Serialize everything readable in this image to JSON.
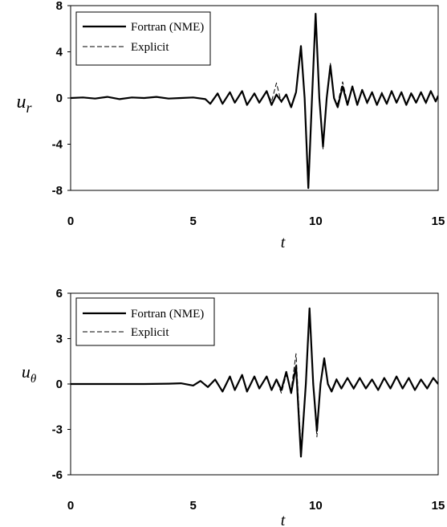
{
  "chart_data": [
    {
      "type": "line",
      "xlabel": "t",
      "ylabel": "u",
      "ylabel_sub": "r",
      "xlim": [
        0,
        15
      ],
      "ylim": [
        -8,
        8
      ],
      "xticks": [
        0,
        5,
        10,
        15
      ],
      "yticks": [
        -8,
        -4,
        0,
        4,
        8
      ],
      "xtick_labels": [
        "0",
        "5",
        "10",
        "15"
      ],
      "ytick_labels": [
        "-8",
        "-4",
        "0",
        "4",
        "8"
      ],
      "legend_position": "top-left",
      "grid": false,
      "series": [
        {
          "name": "Fortran (NME)",
          "style": "solid",
          "color": "#000000",
          "points": [
            [
              0,
              0
            ],
            [
              0.5,
              0.05
            ],
            [
              1,
              -0.05
            ],
            [
              1.5,
              0.1
            ],
            [
              2,
              -0.1
            ],
            [
              2.5,
              0.05
            ],
            [
              3,
              0
            ],
            [
              3.5,
              0.1
            ],
            [
              4,
              -0.05
            ],
            [
              4.5,
              0
            ],
            [
              5,
              0.05
            ],
            [
              5.5,
              -0.1
            ],
            [
              5.7,
              -0.5
            ],
            [
              6,
              0.4
            ],
            [
              6.2,
              -0.5
            ],
            [
              6.5,
              0.5
            ],
            [
              6.7,
              -0.4
            ],
            [
              7,
              0.6
            ],
            [
              7.2,
              -0.6
            ],
            [
              7.5,
              0.4
            ],
            [
              7.7,
              -0.4
            ],
            [
              8,
              0.6
            ],
            [
              8.2,
              -0.6
            ],
            [
              8.4,
              0.3
            ],
            [
              8.6,
              -0.3
            ],
            [
              8.8,
              0.3
            ],
            [
              9,
              -0.8
            ],
            [
              9.2,
              0.5
            ],
            [
              9.4,
              4.5
            ],
            [
              9.55,
              0
            ],
            [
              9.7,
              -7.8
            ],
            [
              9.85,
              0
            ],
            [
              10,
              7.3
            ],
            [
              10.15,
              0
            ],
            [
              10.3,
              -4.2
            ],
            [
              10.45,
              0
            ],
            [
              10.6,
              2.8
            ],
            [
              10.75,
              0
            ],
            [
              10.9,
              -0.8
            ],
            [
              11.1,
              1.0
            ],
            [
              11.3,
              -0.6
            ],
            [
              11.5,
              1.0
            ],
            [
              11.7,
              -0.6
            ],
            [
              11.9,
              0.7
            ],
            [
              12.1,
              -0.4
            ],
            [
              12.3,
              0.5
            ],
            [
              12.5,
              -0.6
            ],
            [
              12.7,
              0.4
            ],
            [
              12.9,
              -0.5
            ],
            [
              13.1,
              0.6
            ],
            [
              13.3,
              -0.4
            ],
            [
              13.5,
              0.5
            ],
            [
              13.7,
              -0.6
            ],
            [
              13.9,
              0.4
            ],
            [
              14.1,
              -0.4
            ],
            [
              14.3,
              0.5
            ],
            [
              14.5,
              -0.4
            ],
            [
              14.7,
              0.6
            ],
            [
              14.9,
              -0.3
            ],
            [
              15,
              0.2
            ]
          ]
        },
        {
          "name": "Explicit",
          "style": "dashed",
          "color": "#000000",
          "points": [
            [
              0,
              0
            ],
            [
              0.5,
              0.03
            ],
            [
              1,
              -0.03
            ],
            [
              1.5,
              0.08
            ],
            [
              2,
              -0.08
            ],
            [
              2.5,
              0.03
            ],
            [
              3,
              0
            ],
            [
              3.5,
              0.08
            ],
            [
              4,
              -0.03
            ],
            [
              4.5,
              0
            ],
            [
              5,
              0.03
            ],
            [
              5.5,
              -0.08
            ],
            [
              5.7,
              -0.45
            ],
            [
              6,
              0.35
            ],
            [
              6.2,
              -0.45
            ],
            [
              6.5,
              0.45
            ],
            [
              6.7,
              -0.35
            ],
            [
              7,
              0.55
            ],
            [
              7.2,
              -0.55
            ],
            [
              7.5,
              0.35
            ],
            [
              7.7,
              -0.35
            ],
            [
              8,
              0.55
            ],
            [
              8.2,
              -0.3
            ],
            [
              8.4,
              1.3
            ],
            [
              8.6,
              -0.4
            ],
            [
              8.8,
              0.4
            ],
            [
              9,
              -0.7
            ],
            [
              9.2,
              0.6
            ],
            [
              9.4,
              4.2
            ],
            [
              9.55,
              0
            ],
            [
              9.7,
              -7.2
            ],
            [
              9.85,
              0
            ],
            [
              10,
              6.9
            ],
            [
              10.15,
              0
            ],
            [
              10.3,
              -4.4
            ],
            [
              10.45,
              0
            ],
            [
              10.6,
              3.0
            ],
            [
              10.75,
              0
            ],
            [
              10.9,
              -0.5
            ],
            [
              11.1,
              1.4
            ],
            [
              11.3,
              -0.4
            ],
            [
              11.5,
              0.9
            ],
            [
              11.7,
              -0.5
            ],
            [
              11.9,
              0.6
            ],
            [
              12.1,
              -0.5
            ],
            [
              12.3,
              0.4
            ],
            [
              12.5,
              -0.5
            ],
            [
              12.7,
              0.5
            ],
            [
              12.9,
              -0.4
            ],
            [
              13.1,
              0.5
            ],
            [
              13.3,
              -0.3
            ],
            [
              13.5,
              0.4
            ],
            [
              13.7,
              -0.5
            ],
            [
              13.9,
              0.5
            ],
            [
              14.1,
              -0.3
            ],
            [
              14.3,
              0.4
            ],
            [
              14.5,
              -0.5
            ],
            [
              14.7,
              0.5
            ],
            [
              14.9,
              -0.2
            ],
            [
              15,
              0.1
            ]
          ]
        }
      ]
    },
    {
      "type": "line",
      "xlabel": "t",
      "ylabel": "u",
      "ylabel_sub": "θ",
      "xlim": [
        0,
        15
      ],
      "ylim": [
        -6,
        6
      ],
      "xticks": [
        0,
        5,
        10,
        15
      ],
      "yticks": [
        -6,
        -3,
        0,
        3,
        6
      ],
      "xtick_labels": [
        "0",
        "5",
        "10",
        "15"
      ],
      "ytick_labels": [
        "-6",
        "-3",
        "0",
        "3",
        "6"
      ],
      "legend_position": "top-left",
      "grid": false,
      "series": [
        {
          "name": "Fortran (NME)",
          "style": "solid",
          "color": "#000000",
          "points": [
            [
              0,
              0
            ],
            [
              1,
              0
            ],
            [
              2,
              0
            ],
            [
              3,
              0
            ],
            [
              4,
              0.02
            ],
            [
              4.5,
              0.05
            ],
            [
              5,
              -0.1
            ],
            [
              5.3,
              0.2
            ],
            [
              5.6,
              -0.2
            ],
            [
              5.9,
              0.3
            ],
            [
              6.2,
              -0.5
            ],
            [
              6.5,
              0.5
            ],
            [
              6.7,
              -0.4
            ],
            [
              7,
              0.6
            ],
            [
              7.2,
              -0.5
            ],
            [
              7.5,
              0.5
            ],
            [
              7.7,
              -0.3
            ],
            [
              8,
              0.5
            ],
            [
              8.2,
              -0.4
            ],
            [
              8.4,
              0.3
            ],
            [
              8.6,
              -0.4
            ],
            [
              8.8,
              0.8
            ],
            [
              9,
              -0.6
            ],
            [
              9.2,
              1.2
            ],
            [
              9.4,
              -4.8
            ],
            [
              9.6,
              0
            ],
            [
              9.75,
              5.0
            ],
            [
              9.9,
              0
            ],
            [
              10.05,
              -3.1
            ],
            [
              10.2,
              0
            ],
            [
              10.35,
              1.7
            ],
            [
              10.5,
              0
            ],
            [
              10.65,
              -0.5
            ],
            [
              10.85,
              0.3
            ],
            [
              11.05,
              -0.3
            ],
            [
              11.3,
              0.4
            ],
            [
              11.55,
              -0.3
            ],
            [
              11.8,
              0.4
            ],
            [
              12.05,
              -0.3
            ],
            [
              12.3,
              0.3
            ],
            [
              12.55,
              -0.4
            ],
            [
              12.8,
              0.4
            ],
            [
              13.05,
              -0.3
            ],
            [
              13.3,
              0.5
            ],
            [
              13.55,
              -0.3
            ],
            [
              13.8,
              0.4
            ],
            [
              14.05,
              -0.4
            ],
            [
              14.3,
              0.3
            ],
            [
              14.55,
              -0.3
            ],
            [
              14.8,
              0.4
            ],
            [
              15,
              0
            ]
          ]
        },
        {
          "name": "Explicit",
          "style": "dashed",
          "color": "#000000",
          "points": [
            [
              0,
              0
            ],
            [
              1,
              0
            ],
            [
              2,
              0
            ],
            [
              3,
              0
            ],
            [
              4,
              0.02
            ],
            [
              4.5,
              0.04
            ],
            [
              5,
              -0.08
            ],
            [
              5.3,
              0.18
            ],
            [
              5.6,
              -0.18
            ],
            [
              5.9,
              0.28
            ],
            [
              6.2,
              -0.45
            ],
            [
              6.5,
              0.45
            ],
            [
              6.7,
              -0.35
            ],
            [
              7,
              0.55
            ],
            [
              7.2,
              -0.45
            ],
            [
              7.5,
              0.45
            ],
            [
              7.7,
              -0.25
            ],
            [
              8,
              0.45
            ],
            [
              8.2,
              -0.35
            ],
            [
              8.4,
              0.25
            ],
            [
              8.6,
              -0.6
            ],
            [
              8.8,
              0.6
            ],
            [
              9,
              -0.4
            ],
            [
              9.2,
              2.0
            ],
            [
              9.4,
              -4.2
            ],
            [
              9.6,
              0
            ],
            [
              9.75,
              4.4
            ],
            [
              9.9,
              0
            ],
            [
              10.05,
              -3.5
            ],
            [
              10.2,
              0
            ],
            [
              10.35,
              1.5
            ],
            [
              10.5,
              0
            ],
            [
              10.65,
              -0.4
            ],
            [
              10.85,
              0.35
            ],
            [
              11.05,
              -0.25
            ],
            [
              11.3,
              0.35
            ],
            [
              11.55,
              -0.35
            ],
            [
              11.8,
              0.35
            ],
            [
              12.05,
              -0.25
            ],
            [
              12.3,
              0.35
            ],
            [
              12.55,
              -0.35
            ],
            [
              12.8,
              0.35
            ],
            [
              13.05,
              -0.25
            ],
            [
              13.3,
              0.45
            ],
            [
              13.55,
              -0.25
            ],
            [
              13.8,
              0.35
            ],
            [
              14.05,
              -0.35
            ],
            [
              14.3,
              0.25
            ],
            [
              14.55,
              -0.25
            ],
            [
              14.8,
              0.35
            ],
            [
              15,
              0
            ]
          ]
        }
      ]
    }
  ]
}
